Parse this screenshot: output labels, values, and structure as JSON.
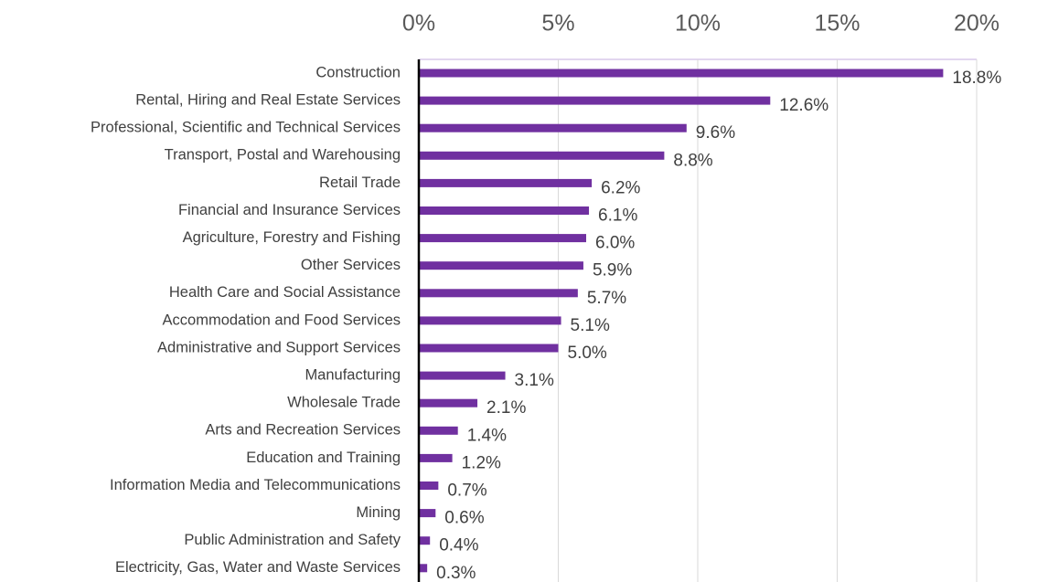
{
  "chart_data": {
    "type": "bar",
    "orientation": "horizontal",
    "categories": [
      "Construction",
      "Rental, Hiring and Real Estate Services",
      "Professional, Scientific and Technical Services",
      "Transport, Postal and Warehousing",
      "Retail Trade",
      "Financial and Insurance Services",
      "Agriculture, Forestry and Fishing",
      "Other Services",
      "Health Care and Social Assistance",
      "Accommodation and Food Services",
      "Administrative and Support Services",
      "Manufacturing",
      "Wholesale Trade",
      "Arts and Recreation Services",
      "Education and Training",
      "Information Media and Telecommunications",
      "Mining",
      "Public Administration and Safety",
      "Electricity, Gas, Water and Waste Services"
    ],
    "values": [
      18.8,
      12.6,
      9.6,
      8.8,
      6.2,
      6.1,
      6.0,
      5.9,
      5.7,
      5.1,
      5.0,
      3.1,
      2.1,
      1.4,
      1.2,
      0.7,
      0.6,
      0.4,
      0.3
    ],
    "value_labels": [
      "18.8%",
      "12.6%",
      "9.6%",
      "8.8%",
      "6.2%",
      "6.1%",
      "6.0%",
      "5.9%",
      "5.7%",
      "5.1%",
      "5.0%",
      "3.1%",
      "2.1%",
      "1.4%",
      "1.2%",
      "0.7%",
      "0.6%",
      "0.4%",
      "0.3%"
    ],
    "color": "#7030a0",
    "xlim": [
      0,
      20
    ],
    "xticks": [
      {
        "value": 0,
        "label": "0%"
      },
      {
        "value": 5,
        "label": "5%"
      },
      {
        "value": 10,
        "label": "10%"
      },
      {
        "value": 15,
        "label": "15%"
      },
      {
        "value": 20,
        "label": "20%"
      }
    ],
    "grid": true
  }
}
